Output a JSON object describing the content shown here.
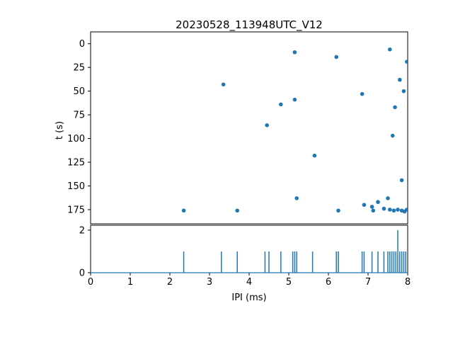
{
  "figure": {
    "background": "#ffffff",
    "accent_color": "#1f77b4",
    "axis_color": "#000000"
  },
  "chart_data": [
    {
      "type": "scatter",
      "title": "20230528_113948UTC_V12",
      "ylabel": "t (s)",
      "xlim": [
        0,
        8
      ],
      "ylim_top_to_bottom": [
        -12.5,
        190
      ],
      "yticks": [
        0,
        25,
        50,
        75,
        100,
        125,
        150,
        175
      ],
      "grid": false,
      "points": [
        [
          3.35,
          43
        ],
        [
          5.15,
          9
        ],
        [
          6.2,
          14
        ],
        [
          7.55,
          6
        ],
        [
          7.98,
          19
        ],
        [
          7.8,
          38
        ],
        [
          7.9,
          50
        ],
        [
          6.85,
          53
        ],
        [
          5.15,
          59
        ],
        [
          4.8,
          64
        ],
        [
          7.68,
          67
        ],
        [
          4.45,
          86
        ],
        [
          7.62,
          97
        ],
        [
          5.65,
          118
        ],
        [
          7.85,
          144
        ],
        [
          5.2,
          163
        ],
        [
          7.5,
          163
        ],
        [
          7.25,
          167
        ],
        [
          6.9,
          170
        ],
        [
          7.1,
          172
        ],
        [
          7.4,
          174
        ],
        [
          2.35,
          176
        ],
        [
          3.7,
          176
        ],
        [
          6.25,
          176
        ],
        [
          7.13,
          176
        ],
        [
          7.55,
          175
        ],
        [
          7.65,
          176
        ],
        [
          7.75,
          175
        ],
        [
          7.85,
          176
        ],
        [
          7.92,
          177
        ],
        [
          7.98,
          175
        ]
      ]
    },
    {
      "type": "stem",
      "xlabel": "IPI (ms)",
      "xlim": [
        0,
        8
      ],
      "ylim": [
        0,
        2.23
      ],
      "yticks": [
        0,
        2
      ],
      "xticks": [
        0,
        1,
        2,
        3,
        4,
        5,
        6,
        7,
        8
      ],
      "baseline": 0,
      "spikes": [
        [
          2.35,
          1
        ],
        [
          3.3,
          1
        ],
        [
          3.7,
          1
        ],
        [
          4.4,
          1
        ],
        [
          4.5,
          1
        ],
        [
          4.8,
          1
        ],
        [
          5.1,
          1
        ],
        [
          5.15,
          1
        ],
        [
          5.2,
          1
        ],
        [
          5.6,
          1
        ],
        [
          6.2,
          1
        ],
        [
          6.25,
          1
        ],
        [
          6.85,
          1
        ],
        [
          6.9,
          1
        ],
        [
          7.1,
          1
        ],
        [
          7.25,
          1
        ],
        [
          7.4,
          1
        ],
        [
          7.5,
          1
        ],
        [
          7.55,
          1
        ],
        [
          7.6,
          1
        ],
        [
          7.65,
          1
        ],
        [
          7.7,
          1
        ],
        [
          7.75,
          2
        ],
        [
          7.8,
          1
        ],
        [
          7.85,
          1
        ],
        [
          7.9,
          1
        ],
        [
          7.95,
          1
        ]
      ]
    }
  ]
}
